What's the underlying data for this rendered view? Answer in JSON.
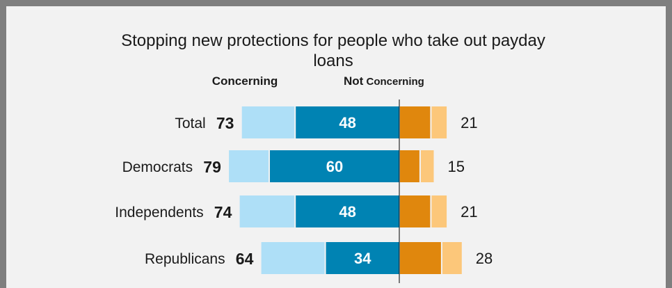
{
  "chart_data": {
    "type": "bar",
    "title_line1": "Stopping new protections for people who take out payday",
    "title_line2": "loans",
    "header_concerning": "Concerning",
    "header_not_bold": "Not",
    "header_not_rest": " Concerning",
    "categories": [
      "Total",
      "Democrats",
      "Independents",
      "Republicans"
    ],
    "concerning_total": [
      73,
      79,
      74,
      64
    ],
    "very_concerning": [
      48,
      60,
      48,
      34
    ],
    "not_concerning_total": [
      21,
      15,
      21,
      28
    ],
    "not_at_all_concerning": [
      14,
      9,
      14,
      19
    ],
    "colors": {
      "concerning_light": "#aedff7",
      "concerning_dark": "#0083b3",
      "not_dark": "#e0870d",
      "not_light": "#fcc77a",
      "axis": "#000000"
    }
  }
}
